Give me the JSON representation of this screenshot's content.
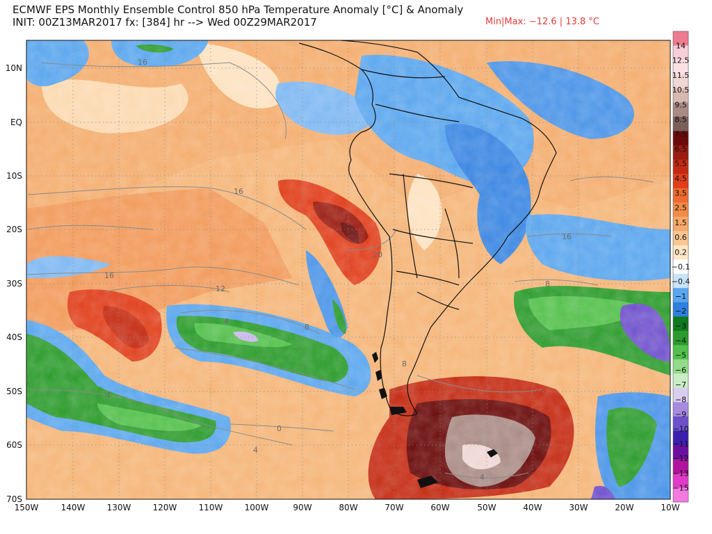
{
  "header": {
    "title_line1": "ECMWF EPS Monthly Ensemble Control 850 hPa Temperature Anomaly [°C] & Anomaly",
    "title_line2": "INIT: 00Z13MAR2017 fx: [384] hr --> Wed 00Z29MAR2017",
    "minmax": "Min|Max: −12.6 | 13.8 °C"
  },
  "map": {
    "lat_labels": [
      "10N",
      "EQ",
      "10S",
      "20S",
      "30S",
      "40S",
      "50S",
      "60S",
      "70S"
    ],
    "lon_labels": [
      "150W",
      "140W",
      "130W",
      "120W",
      "110W",
      "100W",
      "90W",
      "80W",
      "70W",
      "60W",
      "50W",
      "40W",
      "30W",
      "20W",
      "10W"
    ],
    "contour_labels": [
      "16",
      "16",
      "16",
      "16",
      "12",
      "8",
      "8",
      "4",
      "4",
      "4",
      "0",
      "20",
      "8",
      "4"
    ]
  },
  "colorbar": {
    "labels": [
      "14",
      "12.5",
      "11.5",
      "10.5",
      "9.5",
      "8.5",
      "7.5",
      "6.5",
      "5.5",
      "4.5",
      "3.5",
      "2.5",
      "1.5",
      "0.6",
      "0.2",
      "−0.1",
      "−0.4",
      "−1",
      "−2",
      "−3",
      "−4",
      "−5",
      "−6",
      "−7",
      "−8",
      "−9",
      "−10",
      "−11",
      "−12",
      "−13",
      "−15"
    ],
    "colors": [
      "#ee7b8f",
      "#f8cfd6",
      "#fbe0e4",
      "#eed7d4",
      "#d8b9b2",
      "#a98a84",
      "#7b5f59",
      "#6a0a0a",
      "#9a1b10",
      "#c42a12",
      "#e03e1a",
      "#ee6a30",
      "#f28a48",
      "#f6a868",
      "#f8c690",
      "#fde6c6",
      "#ffffff",
      "#c8e4fa",
      "#5aa6ee",
      "#2f7fe0",
      "#0f7a1e",
      "#2b9b2b",
      "#52c04a",
      "#90dc88",
      "#c9ecc5",
      "#d9cdf0",
      "#a88ae0",
      "#6f50cc",
      "#3c1fb0",
      "#6a0fa0",
      "#b0149e",
      "#e03cc8",
      "#f37ae0"
    ]
  }
}
